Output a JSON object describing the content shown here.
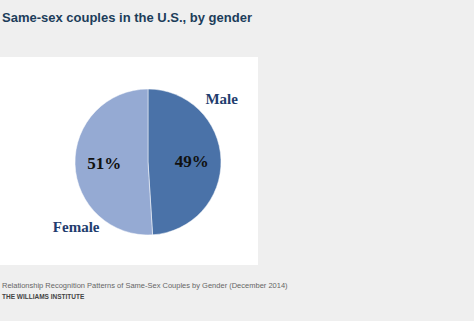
{
  "chart_data": {
    "type": "pie",
    "title": "Same-sex couples in the U.S., by gender",
    "categories": [
      "Male",
      "Female"
    ],
    "values": [
      49,
      51
    ],
    "value_labels": [
      "49%",
      "51%"
    ],
    "colors": [
      "#4a72a8",
      "#95aad3"
    ],
    "data_labels": true,
    "annotations": [
      "Relationship Recognition Patterns of Same-Sex Couples by Gender (December 2014)",
      "THE WILLIAMS INSTITUTE"
    ]
  }
}
